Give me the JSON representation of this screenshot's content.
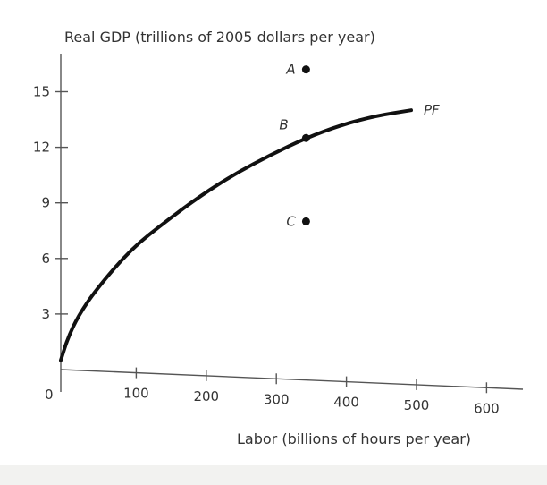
{
  "chart_data": {
    "type": "line",
    "ylabel": "Real GDP (trillions of 2005 dollars per year)",
    "xlabel": "Labor (billions of hours per year)",
    "xlim": [
      0,
      650
    ],
    "ylim": [
      0,
      17
    ],
    "x_ticks": [
      100,
      200,
      300,
      400,
      500,
      600
    ],
    "y_ticks": [
      3,
      6,
      9,
      12,
      15
    ],
    "origin_label": "0",
    "grid": false,
    "series": [
      {
        "name": "PF",
        "x": [
          0,
          10,
          25,
          50,
          100,
          150,
          200,
          250,
          300,
          350,
          400,
          450,
          500
        ],
        "y": [
          0.5,
          1.7,
          2.9,
          4.3,
          6.5,
          8.0,
          9.4,
          10.6,
          11.6,
          12.5,
          13.2,
          13.7,
          14.0
        ]
      }
    ],
    "points": [
      {
        "label": "A",
        "x": 350,
        "y": 16.2
      },
      {
        "label": "B",
        "x": 350,
        "y": 12.5
      },
      {
        "label": "C",
        "x": 350,
        "y": 8.0
      }
    ]
  }
}
